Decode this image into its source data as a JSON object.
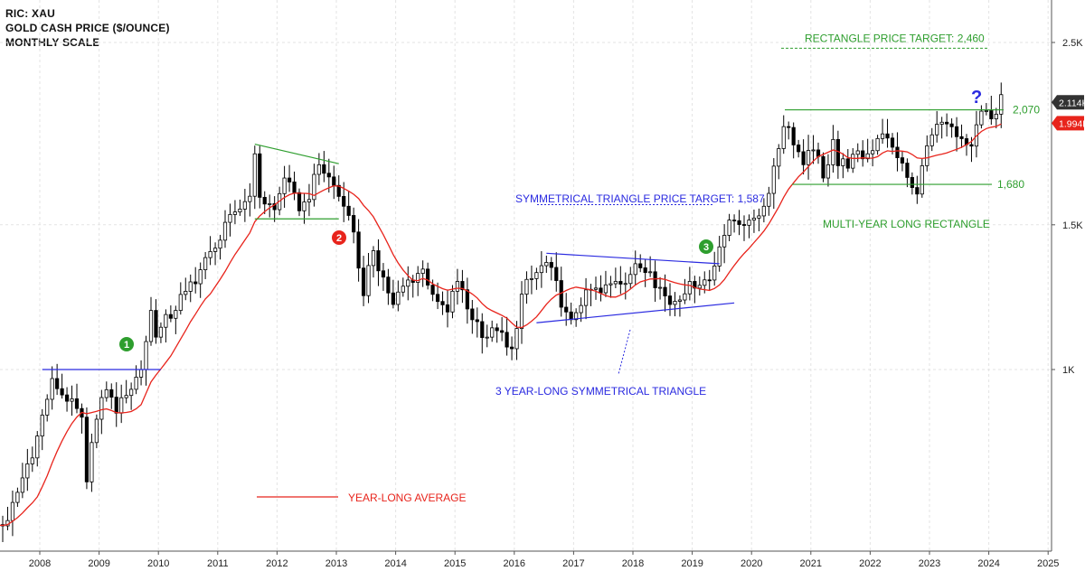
{
  "header": {
    "ric": "RIC: XAU",
    "name": "GOLD CASH PRICE ($/OUNCE)",
    "scale": "MONTHLY SCALE"
  },
  "colors": {
    "up": "#ffffff",
    "down": "#000000",
    "ma": "#e8241c",
    "green": "#2e9e2e",
    "blue": "#2a2ae0",
    "red_badge": "#e8241c"
  },
  "chart_data": {
    "type": "candlestick",
    "log_scale": true,
    "x_tick_labels": [
      "2008",
      "2009",
      "2010",
      "2011",
      "2012",
      "2013",
      "2014",
      "2015",
      "2016",
      "2017",
      "2018",
      "2019",
      "2020",
      "2021",
      "2022",
      "2023",
      "2024",
      "2025"
    ],
    "y_tick_labels": [
      {
        "value": 1000,
        "label": "1K"
      },
      {
        "value": 1500,
        "label": "1.5K"
      },
      {
        "value": 2500,
        "label": "2.5K"
      }
    ],
    "ylim": [
      620,
      2700
    ],
    "last_price_badge": {
      "value": 2114,
      "label": "2.114K"
    },
    "ma_badge": {
      "value": 1994,
      "label": "1.994K"
    },
    "series": [
      {
        "name": "price",
        "kind": "ohlc_monthly",
        "start": "2007-01",
        "anchors": [
          [
            "2007-01",
            640
          ],
          [
            "2007-06",
            655
          ],
          [
            "2007-12",
            830
          ],
          [
            "2008-03",
            975
          ],
          [
            "2008-06",
            915
          ],
          [
            "2008-09",
            875
          ],
          [
            "2008-10",
            730
          ],
          [
            "2008-11",
            815
          ],
          [
            "2008-12",
            870
          ],
          [
            "2009-02",
            945
          ],
          [
            "2009-04",
            885
          ],
          [
            "2009-06",
            930
          ],
          [
            "2009-09",
            1000
          ],
          [
            "2009-11",
            1180
          ],
          [
            "2009-12",
            1095
          ],
          [
            "2010-06",
            1245
          ],
          [
            "2010-12",
            1405
          ],
          [
            "2011-04",
            1555
          ],
          [
            "2011-07",
            1625
          ],
          [
            "2011-08",
            1830
          ],
          [
            "2011-09",
            1620
          ],
          [
            "2011-12",
            1565
          ],
          [
            "2012-02",
            1710
          ],
          [
            "2012-05",
            1560
          ],
          [
            "2012-07",
            1610
          ],
          [
            "2012-09",
            1775
          ],
          [
            "2012-12",
            1675
          ],
          [
            "2013-02",
            1580
          ],
          [
            "2013-04",
            1470
          ],
          [
            "2013-06",
            1230
          ],
          [
            "2013-08",
            1395
          ],
          [
            "2013-12",
            1200
          ],
          [
            "2014-03",
            1285
          ],
          [
            "2014-06",
            1325
          ],
          [
            "2014-09",
            1210
          ],
          [
            "2014-11",
            1175
          ],
          [
            "2015-01",
            1280
          ],
          [
            "2015-03",
            1185
          ],
          [
            "2015-07",
            1095
          ],
          [
            "2015-09",
            1115
          ],
          [
            "2015-11",
            1065
          ],
          [
            "2015-12",
            1060
          ],
          [
            "2016-02",
            1235
          ],
          [
            "2016-04",
            1290
          ],
          [
            "2016-07",
            1350
          ],
          [
            "2016-11",
            1175
          ],
          [
            "2016-12",
            1150
          ],
          [
            "2017-03",
            1250
          ],
          [
            "2017-06",
            1240
          ],
          [
            "2017-09",
            1280
          ],
          [
            "2017-12",
            1305
          ],
          [
            "2018-01",
            1345
          ],
          [
            "2018-04",
            1315
          ],
          [
            "2018-08",
            1200
          ],
          [
            "2018-12",
            1280
          ],
          [
            "2019-04",
            1285
          ],
          [
            "2019-06",
            1410
          ],
          [
            "2019-08",
            1520
          ],
          [
            "2019-12",
            1520
          ],
          [
            "2020-03",
            1580
          ],
          [
            "2020-07",
            1975
          ],
          [
            "2020-08",
            1970
          ],
          [
            "2020-11",
            1775
          ],
          [
            "2021-01",
            1850
          ],
          [
            "2021-03",
            1710
          ],
          [
            "2021-05",
            1905
          ],
          [
            "2021-06",
            1770
          ],
          [
            "2021-12",
            1830
          ],
          [
            "2022-02",
            1910
          ],
          [
            "2022-03",
            1935
          ],
          [
            "2022-06",
            1810
          ],
          [
            "2022-09",
            1665
          ],
          [
            "2022-10",
            1635
          ],
          [
            "2022-11",
            1770
          ],
          [
            "2023-01",
            1930
          ],
          [
            "2023-04",
            1990
          ],
          [
            "2023-06",
            1920
          ],
          [
            "2023-09",
            1870
          ],
          [
            "2023-10",
            1985
          ],
          [
            "2023-12",
            2065
          ],
          [
            "2024-02",
            2045
          ],
          [
            "2024-03",
            2160
          ]
        ]
      },
      {
        "name": "YEAR-LONG AVERAGE",
        "kind": "moving_average",
        "period": 12
      }
    ],
    "annotations": {
      "rectangle_target": {
        "label": "RECTANGLE PRICE TARGET: 2,460",
        "value": 2460
      },
      "level_2070": {
        "label": "2,070",
        "value": 2070
      },
      "level_1680": {
        "label": "1,680",
        "value": 1680
      },
      "rectangle_label": "MULTI-YEAR LONG RECTANGLE",
      "triangle_target": {
        "label": "SYMMETRICAL TRIANGLE PRICE TARGET: 1,587",
        "value": 1587
      },
      "triangle_label": "3 YEAR-LONG SYMMETRICAL TRIANGLE",
      "ma_label": "YEAR-LONG AVERAGE",
      "question_mark": "?",
      "badge_1": "1",
      "badge_2": "2",
      "badge_3": "3",
      "neckline_2008": {
        "value": 1000,
        "from": "2008-01",
        "to": "2010-01"
      },
      "resistance_2011": {
        "from": [
          "2011-08",
          1880
        ],
        "to": [
          "2013-01",
          1780
        ]
      },
      "support_2011": {
        "value": 1525,
        "from": "2011-08",
        "to": "2013-01"
      },
      "triangle_upper": {
        "from": [
          "2016-07",
          1385
        ],
        "to": [
          "2019-06",
          1345
        ]
      },
      "triangle_lower": {
        "from": [
          "2016-07",
          1145
        ],
        "to": [
          "2019-10",
          1205
        ]
      }
    }
  }
}
